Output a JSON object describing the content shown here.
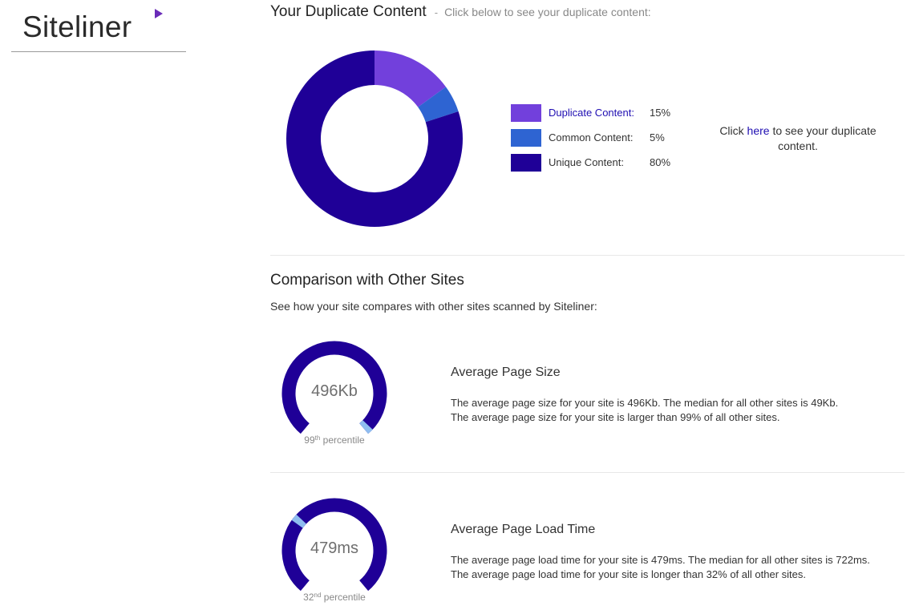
{
  "brand": {
    "name": "Siteliner",
    "accent": "#6a2bb8"
  },
  "duplicate": {
    "title": "Your Duplicate Content",
    "separator": "-",
    "subtitle": "Click below to see your duplicate content:",
    "legend": [
      {
        "label": "Duplicate Content:",
        "value": "15%",
        "color": "#7240dc"
      },
      {
        "label": "Common Content:",
        "value": "5%",
        "color": "#2e64d2"
      },
      {
        "label": "Unique Content:",
        "value": "80%",
        "color": "#1f0097"
      }
    ],
    "note": {
      "prefix": "Click ",
      "link": "here",
      "suffix": " to see your duplicate content."
    }
  },
  "chart_data": {
    "type": "pie",
    "variant": "donut",
    "categories": [
      "Duplicate Content",
      "Common Content",
      "Unique Content"
    ],
    "values": [
      15,
      5,
      80
    ],
    "unit": "%",
    "colors": [
      "#7240dc",
      "#2e64d2",
      "#1f0097"
    ]
  },
  "comparison": {
    "title": "Comparison with Other Sites",
    "description": "See how your site compares with other sites scanned by Siteliner:",
    "items": [
      {
        "gauge_value": "496Kb",
        "percentile_number": "99",
        "percentile_suffix": "th",
        "percentile_label": " percentile",
        "percentile_fraction": 0.99,
        "title": "Average Page Size",
        "line1": "The average page size for your site is 496Kb. The median for all other sites is 49Kb.",
        "line2": "The average page size for your site is larger than 99% of all other sites."
      },
      {
        "gauge_value": "479ms",
        "percentile_number": "32",
        "percentile_suffix": "nd",
        "percentile_label": " percentile",
        "percentile_fraction": 0.32,
        "title": "Average Page Load Time",
        "line1": "The average page load time for your site is 479ms. The median for all other sites is 722ms.",
        "line2": "The average page load time for your site is longer than 32% of all other sites."
      }
    ],
    "gauge_color": "#1f0097",
    "marker_color": "#8fbdf0"
  }
}
